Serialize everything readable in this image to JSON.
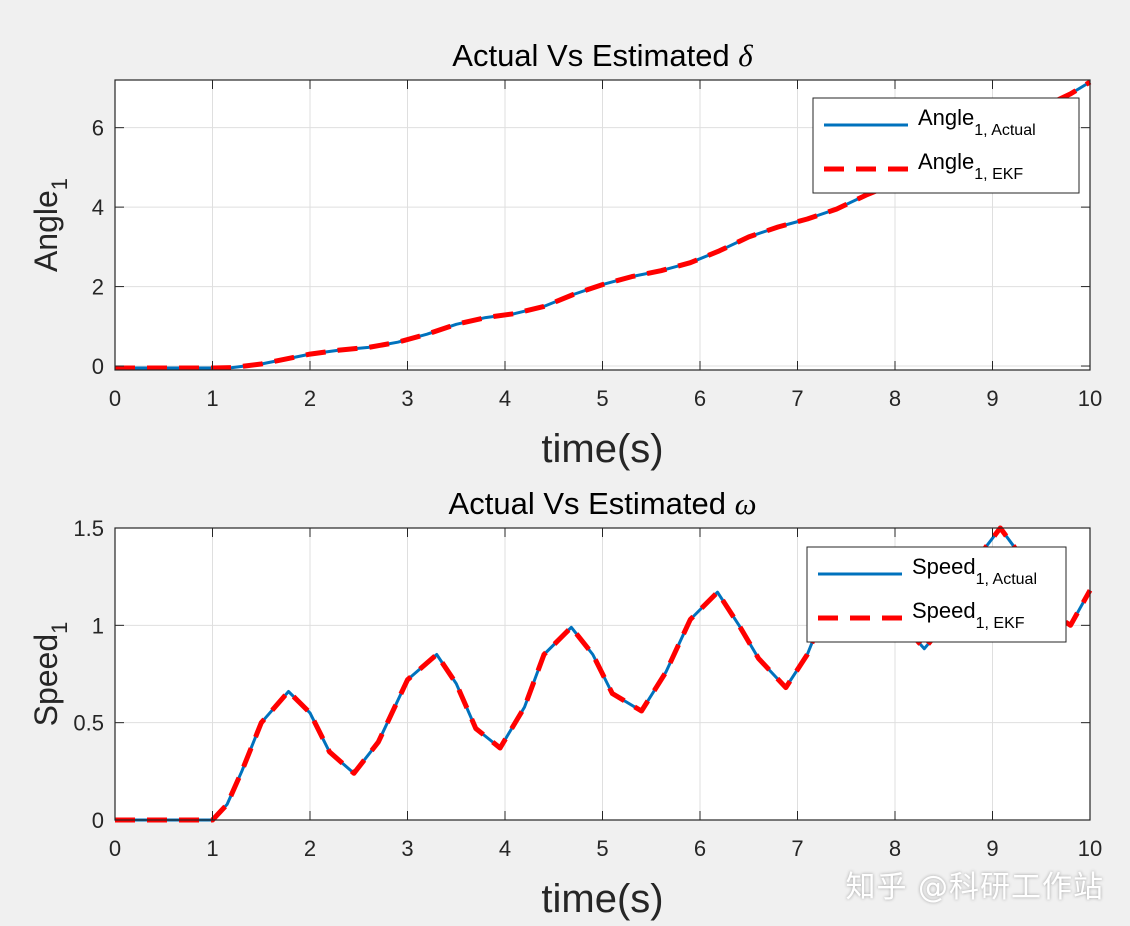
{
  "watermark": "知乎 @科研工作站",
  "chart_data": [
    {
      "type": "line",
      "title_prefix": "Actual Vs Estimated ",
      "title_symbol": "δ",
      "xlabel": "time(s)",
      "ylabel_base": "Angle",
      "ylabel_sub": "1",
      "xlim": [
        0,
        10
      ],
      "ylim": [
        -0.1,
        7.2
      ],
      "xticks": [
        "0",
        "1",
        "2",
        "3",
        "4",
        "5",
        "6",
        "7",
        "8",
        "9",
        "10"
      ],
      "yticks": [
        {
          "label": "0",
          "value": 0
        },
        {
          "label": "2",
          "value": 2
        },
        {
          "label": "4",
          "value": 4
        },
        {
          "label": "6",
          "value": 6
        }
      ],
      "grid": true,
      "legend_position": "top-right",
      "series": [
        {
          "name_base": "Angle",
          "name_sub": "1, Actual",
          "color": "#0072BD",
          "style": "solid",
          "x": [
            0,
            0.5,
            1,
            1.2,
            1.5,
            1.8,
            2.0,
            2.3,
            2.6,
            2.9,
            3.2,
            3.5,
            3.8,
            4.1,
            4.4,
            4.7,
            5.0,
            5.3,
            5.6,
            5.9,
            6.2,
            6.5,
            6.8,
            7.1,
            7.4,
            7.7,
            8.0,
            8.3,
            8.6,
            8.9,
            9.2,
            9.5,
            9.8,
            10.0
          ],
          "y": [
            -0.05,
            -0.05,
            -0.05,
            -0.04,
            0.05,
            0.2,
            0.3,
            0.4,
            0.47,
            0.6,
            0.8,
            1.05,
            1.22,
            1.32,
            1.5,
            1.8,
            2.05,
            2.25,
            2.4,
            2.6,
            2.9,
            3.25,
            3.5,
            3.7,
            3.95,
            4.3,
            4.6,
            4.95,
            5.3,
            5.7,
            6.1,
            6.5,
            6.85,
            7.15
          ]
        },
        {
          "name_base": "Angle",
          "name_sub": "1, EKF",
          "color": "#FF0000",
          "style": "dashed",
          "x": [
            0,
            0.5,
            1,
            1.2,
            1.5,
            1.8,
            2.0,
            2.3,
            2.6,
            2.9,
            3.2,
            3.5,
            3.8,
            4.1,
            4.4,
            4.7,
            5.0,
            5.3,
            5.6,
            5.9,
            6.2,
            6.5,
            6.8,
            7.1,
            7.4,
            7.7,
            8.0,
            8.3,
            8.6,
            8.9,
            9.2,
            9.5,
            9.8,
            10.0
          ],
          "y": [
            -0.05,
            -0.05,
            -0.05,
            -0.04,
            0.05,
            0.2,
            0.3,
            0.4,
            0.47,
            0.6,
            0.8,
            1.05,
            1.22,
            1.32,
            1.5,
            1.8,
            2.05,
            2.25,
            2.4,
            2.6,
            2.9,
            3.25,
            3.5,
            3.7,
            3.95,
            4.3,
            4.6,
            4.95,
            5.3,
            5.7,
            6.1,
            6.5,
            6.85,
            7.15
          ]
        }
      ]
    },
    {
      "type": "line",
      "title_prefix": "Actual Vs Estimated ",
      "title_symbol": "ω",
      "xlabel": "time(s)",
      "ylabel_base": "Speed",
      "ylabel_sub": "1",
      "xlim": [
        0,
        10
      ],
      "ylim": [
        0,
        1.5
      ],
      "xticks": [
        "0",
        "1",
        "2",
        "3",
        "4",
        "5",
        "6",
        "7",
        "8",
        "9",
        "10"
      ],
      "yticks": [
        {
          "label": "0",
          "value": 0
        },
        {
          "label": "0.5",
          "value": 0.5
        },
        {
          "label": "1",
          "value": 1
        },
        {
          "label": "1.5",
          "value": 1.5
        }
      ],
      "grid": true,
      "legend_position": "top-right",
      "series": [
        {
          "name_base": "Speed",
          "name_sub": "1, Actual",
          "color": "#0072BD",
          "style": "solid",
          "x": [
            0,
            0.5,
            1,
            1.15,
            1.3,
            1.5,
            1.78,
            2.0,
            2.2,
            2.45,
            2.7,
            3.0,
            3.3,
            3.5,
            3.7,
            3.95,
            4.2,
            4.4,
            4.68,
            4.9,
            5.1,
            5.4,
            5.65,
            5.9,
            6.18,
            6.4,
            6.6,
            6.88,
            7.1,
            7.3,
            7.55,
            7.8,
            8.0,
            8.3,
            8.5,
            8.7,
            9.08,
            9.3,
            9.5,
            9.8,
            10.0
          ],
          "y": [
            0,
            0,
            0,
            0.08,
            0.25,
            0.5,
            0.66,
            0.55,
            0.35,
            0.24,
            0.4,
            0.72,
            0.85,
            0.7,
            0.47,
            0.37,
            0.58,
            0.85,
            0.99,
            0.85,
            0.65,
            0.56,
            0.76,
            1.03,
            1.17,
            1.0,
            0.83,
            0.68,
            0.85,
            1.1,
            1.26,
            1.2,
            1.05,
            0.88,
            1.0,
            1.25,
            1.5,
            1.35,
            1.1,
            1.0,
            1.18
          ]
        },
        {
          "name_base": "Speed",
          "name_sub": "1, EKF",
          "color": "#FF0000",
          "style": "dashed",
          "x": [
            0,
            0.5,
            1,
            1.15,
            1.3,
            1.5,
            1.78,
            2.0,
            2.2,
            2.45,
            2.7,
            3.0,
            3.3,
            3.5,
            3.7,
            3.95,
            4.2,
            4.4,
            4.68,
            4.9,
            5.1,
            5.4,
            5.65,
            5.9,
            6.18,
            6.4,
            6.6,
            6.88,
            7.1,
            7.3,
            7.55,
            7.8,
            8.0,
            8.3,
            8.5,
            8.7,
            9.08,
            9.3,
            9.5,
            9.8,
            10.0
          ],
          "y": [
            0,
            0,
            0,
            0.08,
            0.25,
            0.5,
            0.66,
            0.55,
            0.35,
            0.24,
            0.4,
            0.72,
            0.85,
            0.7,
            0.47,
            0.37,
            0.58,
            0.85,
            0.99,
            0.85,
            0.65,
            0.56,
            0.76,
            1.03,
            1.17,
            1.0,
            0.83,
            0.68,
            0.85,
            1.1,
            1.26,
            1.2,
            1.05,
            0.88,
            1.0,
            1.25,
            1.5,
            1.35,
            1.1,
            1.0,
            1.18
          ]
        }
      ]
    }
  ]
}
